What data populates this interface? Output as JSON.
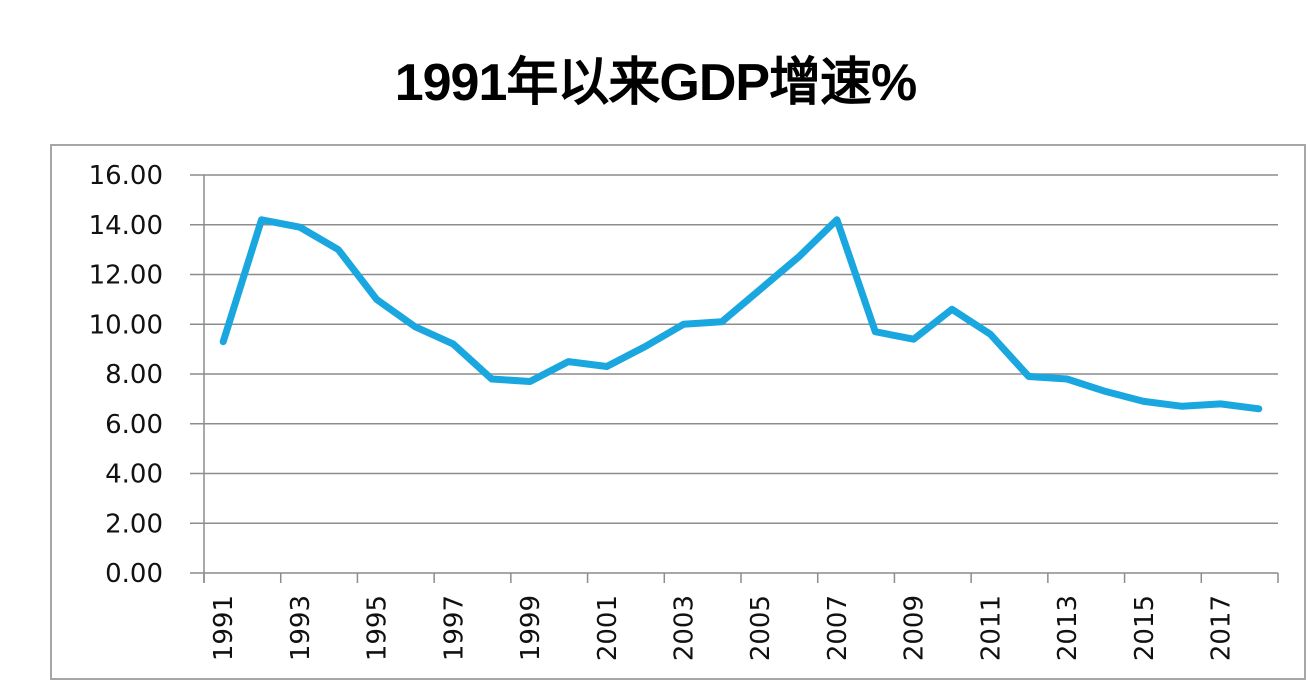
{
  "title": "1991年以来GDP增速%",
  "chart_data": {
    "type": "line",
    "title": "1991年以来GDP增速%",
    "xlabel": "",
    "ylabel": "",
    "ylim": [
      0,
      16
    ],
    "yticks": [
      "0.00",
      "2.00",
      "4.00",
      "6.00",
      "8.00",
      "10.00",
      "12.00",
      "14.00",
      "16.00"
    ],
    "xtick_labels": [
      "1991",
      "1993",
      "1995",
      "1997",
      "1999",
      "2001",
      "2003",
      "2005",
      "2007",
      "2009",
      "2011",
      "2013",
      "2015",
      "2017"
    ],
    "grid": true,
    "legend": null,
    "line_color": "#1aa7e0",
    "x": [
      1991,
      1992,
      1993,
      1994,
      1995,
      1996,
      1997,
      1998,
      1999,
      2000,
      2001,
      2002,
      2003,
      2004,
      2005,
      2006,
      2007,
      2008,
      2009,
      2010,
      2011,
      2012,
      2013,
      2014,
      2015,
      2016,
      2017,
      2018
    ],
    "series": [
      {
        "name": "GDP增速%",
        "values": [
          9.3,
          14.2,
          13.9,
          13.0,
          11.0,
          9.9,
          9.2,
          7.8,
          7.7,
          8.5,
          8.3,
          9.1,
          10.0,
          10.1,
          11.4,
          12.7,
          14.2,
          9.7,
          9.4,
          10.6,
          9.6,
          7.9,
          7.8,
          7.3,
          6.9,
          6.7,
          6.8,
          6.6
        ]
      }
    ]
  }
}
